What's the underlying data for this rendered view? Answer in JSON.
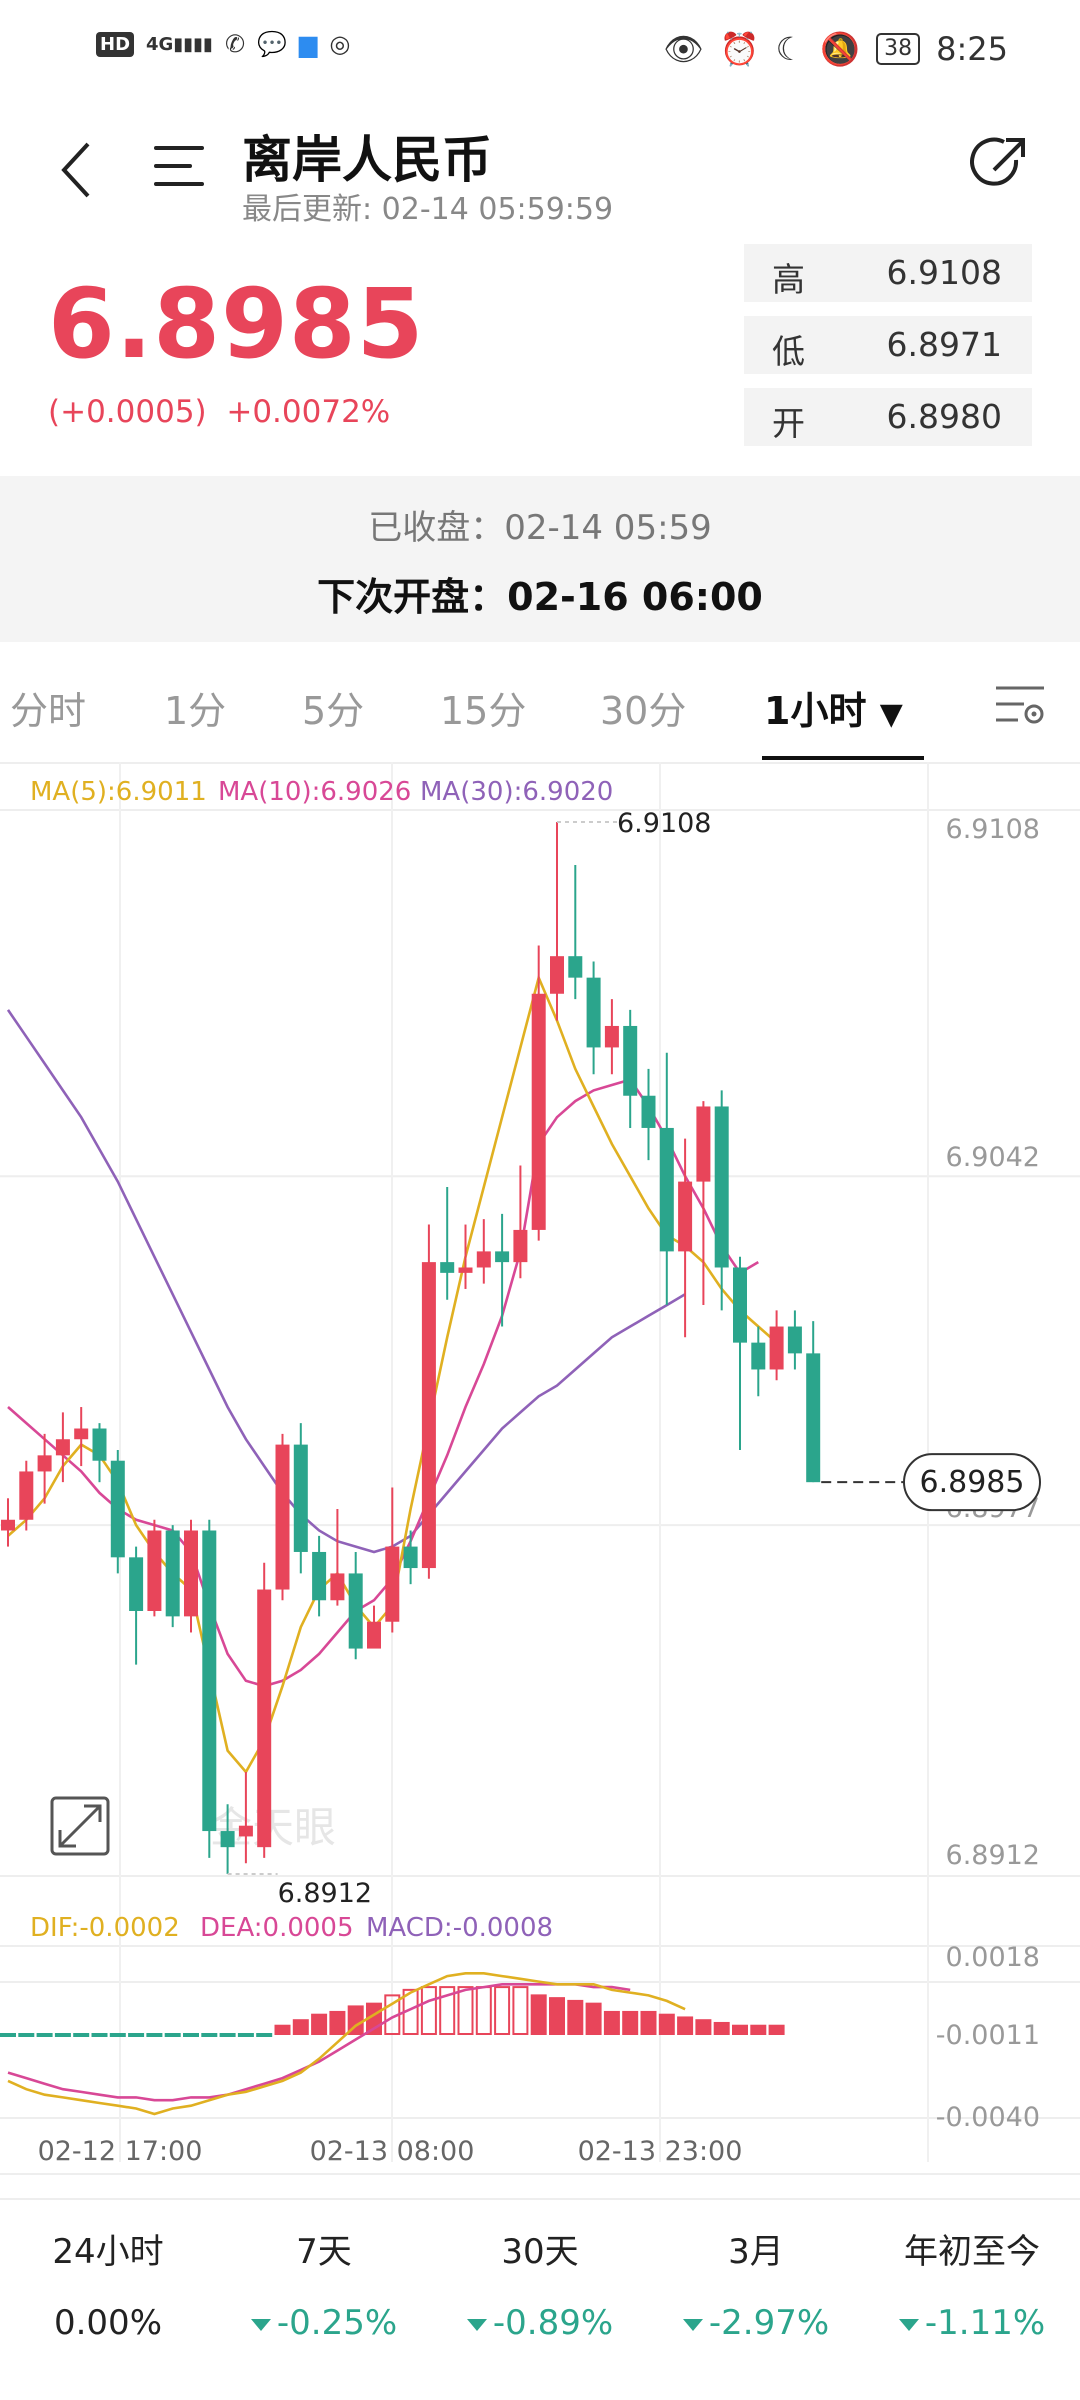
{
  "status_bar": {
    "left_icons": [
      "hd-icon",
      "signal-icon",
      "missed-call-icon",
      "message-icon",
      "notification-icon",
      "wechat-icon"
    ],
    "hd": "HD",
    "net": "4G",
    "right_icons": [
      "eye-icon",
      "alarm-icon",
      "moon-icon",
      "bell-off-icon"
    ],
    "battery": "38",
    "time": "8:25"
  },
  "header": {
    "title": "离岸人民币",
    "last_update": "最后更新: 02-14 05:59:59"
  },
  "quote": {
    "price": "6.8985",
    "change": "(+0.0005)",
    "change_pct": "+0.0072%",
    "stats": [
      {
        "label": "高",
        "value": "6.9108"
      },
      {
        "label": "低",
        "value": "6.8971"
      },
      {
        "label": "开",
        "value": "6.8980"
      }
    ]
  },
  "market": {
    "closed": "已收盘：02-14 05:59",
    "next_open": "下次开盘：02-16 06:00"
  },
  "tabs": [
    {
      "label": "分时",
      "active": false
    },
    {
      "label": "1分",
      "active": false
    },
    {
      "label": "5分",
      "active": false
    },
    {
      "label": "15分",
      "active": false
    },
    {
      "label": "30分",
      "active": false
    },
    {
      "label": "1小时",
      "active": true
    }
  ],
  "chart_data": {
    "type": "candlestick",
    "ma_legend": [
      "MA(5):6.9011",
      "MA(10):6.9026",
      "MA(30):6.9020"
    ],
    "price_axis": [
      "6.9108",
      "6.9042",
      "6.8977",
      "6.8912"
    ],
    "ylim": [
      6.8912,
      6.9108
    ],
    "high_label": "6.9108",
    "low_label": "6.8912",
    "last_price_label": "6.8985",
    "watermark": "金天眼",
    "macd_legend": [
      "DIF:-0.0002",
      "DEA:0.0005",
      "MACD:-0.0008"
    ],
    "macd_axis": [
      "0.0018",
      "-0.0011",
      "-0.0040"
    ],
    "macd_ylim": [
      -0.004,
      0.0018
    ],
    "x_labels": [
      "02-12 17:00",
      "02-13 08:00",
      "02-13 23:00"
    ],
    "candles": [
      {
        "o": 6.8976,
        "c": 6.8978,
        "h": 6.8982,
        "l": 6.8973
      },
      {
        "o": 6.8978,
        "c": 6.8987,
        "h": 6.8989,
        "l": 6.8976
      },
      {
        "o": 6.8987,
        "c": 6.899,
        "h": 6.8994,
        "l": 6.8981
      },
      {
        "o": 6.899,
        "c": 6.8993,
        "h": 6.8998,
        "l": 6.8985
      },
      {
        "o": 6.8993,
        "c": 6.8995,
        "h": 6.8999,
        "l": 6.8988
      },
      {
        "o": 6.8995,
        "c": 6.8989,
        "h": 6.8996,
        "l": 6.8985
      },
      {
        "o": 6.8989,
        "c": 6.8971,
        "h": 6.8991,
        "l": 6.8968
      },
      {
        "o": 6.8971,
        "c": 6.8961,
        "h": 6.8973,
        "l": 6.8951
      },
      {
        "o": 6.8961,
        "c": 6.8976,
        "h": 6.8978,
        "l": 6.896
      },
      {
        "o": 6.8976,
        "c": 6.896,
        "h": 6.8977,
        "l": 6.8958
      },
      {
        "o": 6.896,
        "c": 6.8976,
        "h": 6.8978,
        "l": 6.8957
      },
      {
        "o": 6.8976,
        "c": 6.892,
        "h": 6.8978,
        "l": 6.8915
      },
      {
        "o": 6.892,
        "c": 6.8917,
        "h": 6.8925,
        "l": 6.8912
      },
      {
        "o": 6.8919,
        "c": 6.8921,
        "h": 6.8931,
        "l": 6.8914
      },
      {
        "o": 6.8917,
        "c": 6.8965,
        "h": 6.897,
        "l": 6.8915
      },
      {
        "o": 6.8965,
        "c": 6.8992,
        "h": 6.8994,
        "l": 6.8963
      },
      {
        "o": 6.8992,
        "c": 6.8972,
        "h": 6.8996,
        "l": 6.8968
      },
      {
        "o": 6.8972,
        "c": 6.8963,
        "h": 6.8975,
        "l": 6.896
      },
      {
        "o": 6.8963,
        "c": 6.8968,
        "h": 6.898,
        "l": 6.8962
      },
      {
        "o": 6.8968,
        "c": 6.8954,
        "h": 6.8972,
        "l": 6.8952
      },
      {
        "o": 6.8954,
        "c": 6.8959,
        "h": 6.8962,
        "l": 6.8955
      },
      {
        "o": 6.8959,
        "c": 6.8973,
        "h": 6.8984,
        "l": 6.8957
      },
      {
        "o": 6.8973,
        "c": 6.8969,
        "h": 6.8976,
        "l": 6.8966
      },
      {
        "o": 6.8969,
        "c": 6.9026,
        "h": 6.9033,
        "l": 6.8967
      },
      {
        "o": 6.9026,
        "c": 6.9024,
        "h": 6.904,
        "l": 6.9019
      },
      {
        "o": 6.9024,
        "c": 6.9025,
        "h": 6.9033,
        "l": 6.9021
      },
      {
        "o": 6.9025,
        "c": 6.9028,
        "h": 6.9034,
        "l": 6.9022
      },
      {
        "o": 6.9028,
        "c": 6.9026,
        "h": 6.9035,
        "l": 6.9014
      },
      {
        "o": 6.9026,
        "c": 6.9032,
        "h": 6.9044,
        "l": 6.9023
      },
      {
        "o": 6.9032,
        "c": 6.9076,
        "h": 6.9085,
        "l": 6.903
      },
      {
        "o": 6.9076,
        "c": 6.9083,
        "h": 6.9108,
        "l": 6.9071
      },
      {
        "o": 6.9083,
        "c": 6.9079,
        "h": 6.91,
        "l": 6.9075
      },
      {
        "o": 6.9079,
        "c": 6.9066,
        "h": 6.9082,
        "l": 6.9061
      },
      {
        "o": 6.9066,
        "c": 6.907,
        "h": 6.9075,
        "l": 6.9061
      },
      {
        "o": 6.907,
        "c": 6.9057,
        "h": 6.9073,
        "l": 6.9051
      },
      {
        "o": 6.9057,
        "c": 6.9051,
        "h": 6.9062,
        "l": 6.9045
      },
      {
        "o": 6.9051,
        "c": 6.9028,
        "h": 6.9065,
        "l": 6.9018
      },
      {
        "o": 6.9028,
        "c": 6.9041,
        "h": 6.9049,
        "l": 6.9012
      },
      {
        "o": 6.9041,
        "c": 6.9055,
        "h": 6.9056,
        "l": 6.9018
      },
      {
        "o": 6.9055,
        "c": 6.9025,
        "h": 6.9058,
        "l": 6.9017
      },
      {
        "o": 6.9025,
        "c": 6.9011,
        "h": 6.9027,
        "l": 6.8991
      },
      {
        "o": 6.9011,
        "c": 6.9006,
        "h": 6.9014,
        "l": 6.9001
      },
      {
        "o": 6.9006,
        "c": 6.9014,
        "h": 6.9017,
        "l": 6.9004
      },
      {
        "o": 6.9014,
        "c": 6.9009,
        "h": 6.9017,
        "l": 6.9006
      },
      {
        "o": 6.9009,
        "c": 6.8985,
        "h": 6.9015,
        "l": 6.8985
      }
    ],
    "ma5": [
      6.8975,
      6.8978,
      6.8982,
      6.8988,
      6.8992,
      6.899,
      6.8985,
      6.8977,
      6.8972,
      6.8968,
      6.8965,
      6.895,
      6.8935,
      6.8931,
      6.8937,
      6.8947,
      6.8958,
      6.8965,
      6.8968,
      6.8962,
      6.8958,
      6.8962,
      6.898,
      6.8996,
      6.9012,
      6.9027,
      6.904,
      6.9053,
      6.9066,
      6.9079,
      6.9071,
      6.9062,
      6.9055,
      6.9048,
      6.9042,
      6.9036,
      6.9031,
      6.9029,
      6.9026,
      6.9021,
      6.9017,
      6.9014,
      6.9011
    ],
    "ma10": [
      6.8999,
      6.8996,
      6.8993,
      6.899,
      6.8987,
      6.8983,
      6.898,
      6.8978,
      6.8977,
      6.8976,
      6.8972,
      6.8962,
      6.8953,
      6.8948,
      6.8947,
      6.8948,
      6.895,
      6.8953,
      6.8957,
      6.8961,
      6.8963,
      6.8967,
      6.8974,
      6.8982,
      6.899,
      6.8999,
      6.9007,
      6.9016,
      6.9028,
      6.9048,
      6.9053,
      6.9056,
      6.9058,
      6.9059,
      6.906,
      6.9055,
      6.9049,
      6.9042,
      6.9036,
      6.9029,
      6.9024,
      6.9026
    ],
    "ma30": [
      6.9073,
      6.9068,
      6.9063,
      6.9058,
      6.9053,
      6.9047,
      6.9041,
      6.9034,
      6.9027,
      6.902,
      6.9013,
      6.9006,
      6.8999,
      6.8993,
      6.8988,
      6.8983,
      6.8979,
      6.8976,
      6.8974,
      6.8973,
      6.8972,
      6.8973,
      6.8975,
      6.8979,
      6.8983,
      6.8987,
      6.8991,
      6.8995,
      6.8998,
      6.9001,
      6.9003,
      6.9006,
      6.9009,
      6.9012,
      6.9014,
      6.9016,
      6.9018,
      6.902
    ],
    "macd": [
      -0.0011,
      -0.0011,
      -0.0011,
      -0.0011,
      -0.0011,
      -0.0011,
      -0.0011,
      -0.0011,
      -0.0011,
      -0.0011,
      -0.0011,
      -0.0011,
      -0.0011,
      -0.0011,
      -0.0011,
      -0.0008,
      -0.0006,
      -0.0004,
      -0.0003,
      -0.0001,
      0.0,
      0.0003,
      0.0005,
      0.0006,
      0.0006,
      0.0006,
      0.0006,
      0.0006,
      0.0006,
      0.0003,
      0.0002,
      0.0001,
      0.0,
      -0.0003,
      -0.0003,
      -0.0003,
      -0.0004,
      -0.0005,
      -0.0006,
      -0.0007,
      -0.0008,
      -0.0008,
      -0.0008
    ],
    "dif": [
      -0.0028,
      -0.0031,
      -0.0033,
      -0.0034,
      -0.0035,
      -0.0036,
      -0.0037,
      -0.0038,
      -0.004,
      -0.0038,
      -0.0037,
      -0.0035,
      -0.0033,
      -0.0032,
      -0.003,
      -0.0028,
      -0.0025,
      -0.002,
      -0.0014,
      -0.0008,
      -0.0004,
      0.0,
      0.0004,
      0.0007,
      0.001,
      0.0011,
      0.0011,
      0.001,
      0.0009,
      0.0008,
      0.0007,
      0.0007,
      0.0007,
      0.0005,
      0.0004,
      0.0003,
      0.0001,
      -0.0002
    ],
    "dea": [
      -0.0025,
      -0.0027,
      -0.0029,
      -0.0031,
      -0.0032,
      -0.0033,
      -0.0034,
      -0.0034,
      -0.0035,
      -0.0035,
      -0.0034,
      -0.0034,
      -0.0033,
      -0.0031,
      -0.0029,
      -0.0027,
      -0.0024,
      -0.0021,
      -0.0017,
      -0.0013,
      -0.0009,
      -0.0005,
      -0.0002,
      0.0001,
      0.0003,
      0.0005,
      0.0006,
      0.0007,
      0.0007,
      0.0007,
      0.0007,
      0.0007,
      0.0006,
      0.0006,
      0.0005
    ]
  },
  "performance": [
    {
      "label": "24小时",
      "value": "0.00%",
      "down": false
    },
    {
      "label": "7天",
      "value": "-0.25%",
      "down": true
    },
    {
      "label": "30天",
      "value": "-0.89%",
      "down": true
    },
    {
      "label": "3月",
      "value": "-2.97%",
      "down": true
    },
    {
      "label": "年初至今",
      "value": "-1.11%",
      "down": true
    }
  ],
  "colors": {
    "up": "#e8455a",
    "down": "#2ba58c",
    "ma5": "#e0b021",
    "ma10": "#d84896",
    "ma30": "#8f62b8"
  }
}
